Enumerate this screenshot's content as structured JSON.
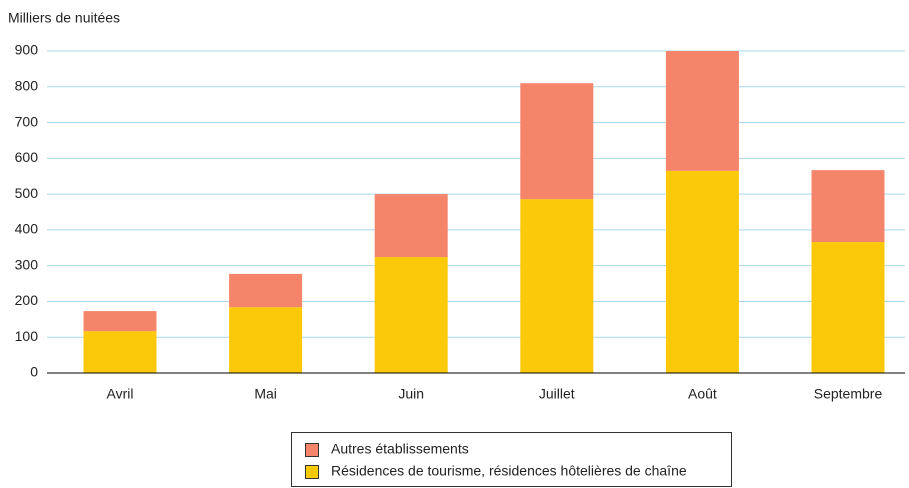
{
  "chart_data": {
    "type": "stacked_bar",
    "y_label": "Milliers de nuitées",
    "categories": [
      "Avril",
      "Mai",
      "Juin",
      "Juillet",
      "Août",
      "Septembre"
    ],
    "series": [
      {
        "name": "Résidences de tourisme, résidences hôtelières de chaîne",
        "color": "#fcc80a",
        "values": [
          117,
          184,
          324,
          486,
          565,
          366
        ]
      },
      {
        "name": "Autres établissements",
        "color": "#f5856a",
        "values": [
          56,
          93,
          176,
          324,
          335,
          201
        ]
      }
    ],
    "ylim": [
      0,
      900
    ],
    "yticks": [
      0,
      100,
      200,
      300,
      400,
      500,
      600,
      700,
      800,
      900
    ],
    "grid": true,
    "legend": "bottom"
  }
}
